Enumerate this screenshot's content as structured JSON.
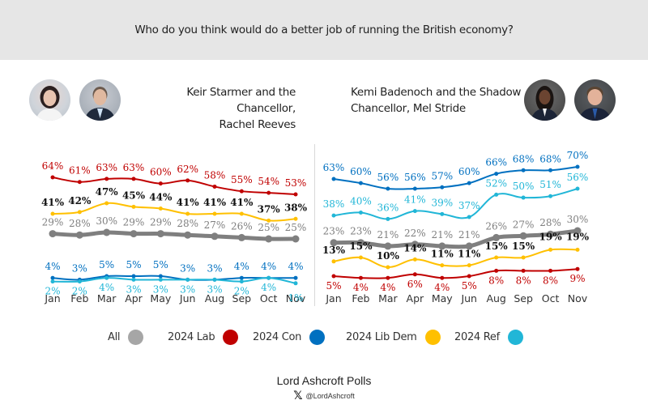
{
  "header": {
    "title": "Who do you think would do a better job of running the British economy?"
  },
  "panels": [
    {
      "subtitle_line1": "Keir Starmer and the Chancellor,",
      "subtitle_line2": "Rachel Reeves",
      "avatars": [
        "Rachel Reeves portrait",
        "Keir Starmer portrait"
      ]
    },
    {
      "subtitle_line1": "Kemi Badenoch and the Shadow",
      "subtitle_line2": "Chancellor, Mel Stride",
      "avatars": [
        "Kemi Badenoch portrait",
        "Mel Stride portrait"
      ]
    }
  ],
  "legend": [
    {
      "label": "All",
      "color": "#a6a6a6"
    },
    {
      "label": "2024 Lab",
      "color": "#c00000"
    },
    {
      "label": "2024 Con",
      "color": "#0070c0"
    },
    {
      "label": "2024 Lib Dem",
      "color": "#ffc000"
    },
    {
      "label": "2024 Ref",
      "color": "#21b6d7"
    }
  ],
  "footer": {
    "brand": "Lord Ashcroft Polls",
    "handle": "@LordAshcroft",
    "x_icon": "x-logo-icon"
  },
  "chart_data": [
    {
      "type": "line",
      "title": "Keir Starmer and the Chancellor, Rachel Reeves",
      "categories": [
        "Jan",
        "Feb",
        "Mar",
        "Apr",
        "May",
        "Jun",
        "Aug",
        "Sep",
        "Oct",
        "Nov"
      ],
      "ylim": [
        0,
        75
      ],
      "grid": false,
      "value_suffix": "%",
      "series": [
        {
          "name": "2024 Lab",
          "color": "#c00000",
          "label_color": "#c00000",
          "values": [
            64,
            61,
            63,
            63,
            60,
            62,
            58,
            55,
            54,
            53
          ]
        },
        {
          "name": "2024 Lib Dem",
          "color": "#ffc000",
          "label_color": "#111111",
          "values": [
            41,
            42,
            47,
            45,
            44,
            41,
            41,
            41,
            37,
            38
          ]
        },
        {
          "name": "All",
          "color": "#7f7f7f",
          "label_color": "#7f7f7f",
          "values": [
            29,
            28,
            30,
            29,
            29,
            28,
            27,
            26,
            25,
            25
          ]
        },
        {
          "name": "2024 Con",
          "color": "#0070c0",
          "label_color": "#0070c0",
          "values": [
            4,
            3,
            5,
            5,
            5,
            3,
            3,
            4,
            4,
            4
          ]
        },
        {
          "name": "2024 Ref",
          "color": "#21b6d7",
          "label_color": "#21b6d7",
          "values": [
            2,
            2,
            4,
            3,
            3,
            3,
            3,
            2,
            4,
            1
          ]
        }
      ]
    },
    {
      "type": "line",
      "title": "Kemi Badenoch and the Shadow Chancellor, Mel Stride",
      "categories": [
        "Jan",
        "Feb",
        "Mar",
        "Apr",
        "May",
        "Jun",
        "Aug",
        "Sep",
        "Oct",
        "Nov"
      ],
      "ylim": [
        0,
        75
      ],
      "grid": false,
      "value_suffix": "%",
      "series": [
        {
          "name": "2024 Con",
          "color": "#0070c0",
          "label_color": "#0070c0",
          "values": [
            63,
            60,
            56,
            56,
            57,
            60,
            66,
            68,
            68,
            70
          ]
        },
        {
          "name": "2024 Ref",
          "color": "#21b6d7",
          "label_color": "#21b6d7",
          "values": [
            38,
            40,
            36,
            41,
            39,
            37,
            52,
            50,
            51,
            56
          ]
        },
        {
          "name": "All",
          "color": "#7f7f7f",
          "label_color": "#7f7f7f",
          "values": [
            23,
            23,
            21,
            22,
            21,
            21,
            26,
            27,
            28,
            30
          ]
        },
        {
          "name": "2024 Lib Dem",
          "color": "#ffc000",
          "label_color": "#111111",
          "values": [
            13,
            15,
            10,
            14,
            11,
            11,
            15,
            15,
            19,
            19
          ]
        },
        {
          "name": "2024 Lab",
          "color": "#c00000",
          "label_color": "#c00000",
          "values": [
            5,
            4,
            4,
            6,
            4,
            5,
            8,
            8,
            8,
            9
          ]
        }
      ]
    }
  ]
}
